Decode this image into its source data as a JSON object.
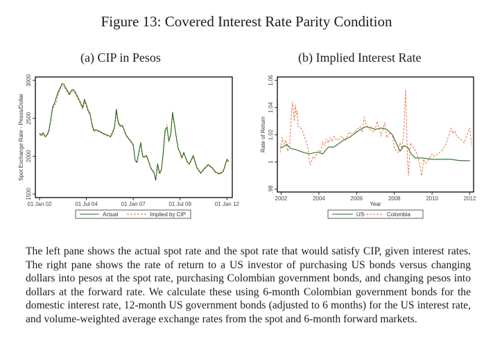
{
  "figure_title": "Figure 13: Covered Interest Rate Parity Condition",
  "caption": "The left pane shows the actual spot rate and the spot rate that would satisfy CIP, given interest rates. The right pane shows the rate of return to a US investor of purchasing US bonds versus changing dollars into pesos at the spot rate, purchasing Colombian government bonds, and changing pesos into dollars at the forward rate. We calculate these using 6-month Colombian government bonds for the domestic interest rate, 12-month US government bonds (adjusted to 6 months) for the US interest rate, and volume-weighted average exchange rates from the spot and 6-month forward markets.",
  "colors": {
    "series_a": "#1e6b1e",
    "series_b": "#e8622a",
    "frame": "#000000"
  },
  "chart_data": [
    {
      "type": "line",
      "title": "(a) CIP in Pesos",
      "xlabel": "",
      "ylabel": "Spot Exchange Rate - Pesos/Dollar",
      "xlim": [
        2002.0,
        2012.1
      ],
      "ylim": [
        1500,
        3000
      ],
      "yticks": [
        1500,
        2000,
        2500,
        3000
      ],
      "ytick_labels": [
        "1500",
        "2000",
        "2500",
        "3000"
      ],
      "xticks": [
        2002.0,
        2004.5,
        2007.0,
        2009.5,
        2012.0
      ],
      "xtick_labels": [
        "01 Jan 02",
        "01 Jul 04",
        "01 Jan 07",
        "01 Jul 09",
        "01 Jan 12"
      ],
      "grid": false,
      "legend": "bottom",
      "x": [
        2002.0,
        2002.1,
        2002.2,
        2002.3,
        2002.4,
        2002.5,
        2002.6,
        2002.7,
        2002.8,
        2002.9,
        2003.0,
        2003.1,
        2003.2,
        2003.3,
        2003.4,
        2003.5,
        2003.6,
        2003.7,
        2003.8,
        2003.9,
        2004.0,
        2004.1,
        2004.2,
        2004.3,
        2004.4,
        2004.5,
        2004.6,
        2004.7,
        2004.8,
        2004.9,
        2005.0,
        2005.2,
        2005.4,
        2005.6,
        2005.8,
        2006.0,
        2006.1,
        2006.2,
        2006.3,
        2006.4,
        2006.5,
        2006.6,
        2006.7,
        2006.8,
        2006.9,
        2007.0,
        2007.1,
        2007.2,
        2007.3,
        2007.4,
        2007.5,
        2007.6,
        2007.7,
        2007.8,
        2007.9,
        2008.0,
        2008.1,
        2008.2,
        2008.3,
        2008.4,
        2008.5,
        2008.6,
        2008.7,
        2008.8,
        2008.9,
        2009.0,
        2009.1,
        2009.2,
        2009.3,
        2009.4,
        2009.5,
        2009.6,
        2009.7,
        2009.8,
        2009.9,
        2010.0,
        2010.2,
        2010.4,
        2010.6,
        2010.8,
        2011.0,
        2011.2,
        2011.4,
        2011.6,
        2011.8,
        2012.0,
        2012.1
      ],
      "series": [
        {
          "name": "Actual",
          "values": [
            2300,
            2280,
            2310,
            2260,
            2280,
            2340,
            2480,
            2650,
            2700,
            2780,
            2850,
            2900,
            2960,
            2950,
            2900,
            2860,
            2820,
            2870,
            2880,
            2850,
            2800,
            2750,
            2700,
            2640,
            2750,
            2680,
            2600,
            2560,
            2420,
            2340,
            2350,
            2330,
            2300,
            2280,
            2260,
            2380,
            2620,
            2450,
            2400,
            2410,
            2360,
            2290,
            2250,
            2220,
            2190,
            2150,
            1950,
            1920,
            2060,
            2180,
            2000,
            1990,
            2010,
            1950,
            1870,
            1820,
            1790,
            1680,
            1900,
            1780,
            1820,
            2050,
            2350,
            2380,
            2200,
            2290,
            2580,
            2420,
            2250,
            2100,
            2050,
            1980,
            2050,
            1980,
            1920,
            1900,
            2010,
            1850,
            1780,
            1840,
            1890,
            1850,
            1790,
            1770,
            1800,
            1960,
            1930,
            1870
          ]
        },
        {
          "name": "Implied by CIP",
          "values": [
            2290,
            2260,
            2300,
            2250,
            2270,
            2320,
            2460,
            2620,
            2680,
            2700,
            2820,
            2880,
            2930,
            2920,
            2880,
            2840,
            2800,
            2850,
            2860,
            2830,
            2780,
            2730,
            2680,
            2620,
            2720,
            2660,
            2580,
            2540,
            2400,
            2320,
            2340,
            2320,
            2290,
            2270,
            2250,
            2360,
            2580,
            2420,
            2390,
            2400,
            2350,
            2280,
            2240,
            2210,
            2180,
            2140,
            1940,
            1910,
            2040,
            2160,
            1990,
            1980,
            2000,
            1940,
            1860,
            1810,
            1780,
            1700,
            1870,
            1760,
            1800,
            2020,
            2300,
            2420,
            2190,
            2270,
            2540,
            2400,
            2240,
            2090,
            2040,
            1970,
            2040,
            1970,
            1910,
            1890,
            1990,
            1840,
            1770,
            1830,
            1880,
            1840,
            1780,
            1760,
            1790,
            1940,
            1920,
            1860
          ]
        }
      ]
    },
    {
      "type": "line",
      "title": "(b) Implied Interest Rate",
      "xlabel": "Year",
      "ylabel": "Rate of Return",
      "xlim": [
        2001.8,
        2012.2
      ],
      "ylim": [
        0.98,
        1.06
      ],
      "yticks": [
        0.98,
        1.0,
        1.02,
        1.04,
        1.06
      ],
      "ytick_labels": [
        ".98",
        "1",
        "1.02",
        "1.04",
        "1.06"
      ],
      "xticks": [
        2002,
        2004,
        2006,
        2008,
        2010,
        2012
      ],
      "xtick_labels": [
        "2002",
        "2004",
        "2006",
        "2008",
        "2010",
        "2012"
      ],
      "grid": false,
      "legend": "bottom",
      "series": [
        {
          "name": "US",
          "x": [
            2001.95,
            2002.1,
            2002.3,
            2002.5,
            2002.8,
            2003.0,
            2003.2,
            2003.5,
            2003.8,
            2004.0,
            2004.2,
            2004.5,
            2004.8,
            2005.0,
            2005.3,
            2005.6,
            2005.9,
            2006.2,
            2006.5,
            2006.8,
            2007.0,
            2007.3,
            2007.6,
            2007.9,
            2008.1,
            2008.3,
            2008.5,
            2008.7,
            2008.9,
            2009.1,
            2009.5,
            2010.0,
            2010.5,
            2011.0,
            2011.5,
            2012.0
          ],
          "values": [
            1.011,
            1.011,
            1.013,
            1.01,
            1.009,
            1.008,
            1.007,
            1.006,
            1.007,
            1.007,
            1.006,
            1.011,
            1.011,
            1.013,
            1.016,
            1.018,
            1.021,
            1.024,
            1.026,
            1.025,
            1.024,
            1.025,
            1.024,
            1.02,
            1.014,
            1.008,
            1.012,
            1.011,
            1.006,
            1.003,
            1.003,
            1.002,
            1.002,
            1.002,
            1.001,
            1.001
          ]
        },
        {
          "name": "Colombia",
          "x": [
            2001.95,
            2002.05,
            2002.15,
            2002.25,
            2002.35,
            2002.45,
            2002.55,
            2002.6,
            2002.7,
            2002.75,
            2002.8,
            2002.85,
            2002.9,
            2003.0,
            2003.1,
            2003.2,
            2003.3,
            2003.4,
            2003.5,
            2003.55,
            2003.7,
            2003.8,
            2003.9,
            2004.0,
            2004.1,
            2004.2,
            2004.3,
            2004.4,
            2004.5,
            2004.6,
            2004.7,
            2004.8,
            2004.9,
            2005.0,
            2005.2,
            2005.4,
            2005.6,
            2005.8,
            2006.0,
            2006.2,
            2006.3,
            2006.4,
            2006.5,
            2006.7,
            2006.9,
            2007.0,
            2007.1,
            2007.3,
            2007.5,
            2007.6,
            2007.8,
            2007.9,
            2008.0,
            2008.2,
            2008.3,
            2008.4,
            2008.5,
            2008.6,
            2008.7,
            2008.75,
            2008.85,
            2008.95,
            2009.05,
            2009.2,
            2009.35,
            2009.45,
            2009.55,
            2009.65,
            2009.75,
            2009.9,
            2010.0,
            2010.1,
            2010.3,
            2010.5,
            2010.7,
            2010.9,
            2011.0,
            2011.1,
            2011.2,
            2011.3,
            2011.5,
            2011.7,
            2011.9,
            2012.0,
            2012.1
          ],
          "values": [
            1.007,
            1.018,
            1.013,
            1.016,
            1.008,
            1.012,
            1.036,
            1.044,
            1.03,
            1.042,
            1.035,
            1.038,
            1.026,
            1.026,
            1.024,
            1.02,
            1.016,
            1.012,
            1.0,
            0.998,
            1.004,
            1.003,
            1.006,
            1.009,
            1.007,
            1.015,
            1.012,
            1.017,
            1.014,
            1.018,
            1.015,
            1.019,
            1.017,
            1.016,
            1.019,
            1.016,
            1.022,
            1.02,
            1.024,
            1.026,
            1.022,
            1.033,
            1.028,
            1.024,
            1.022,
            1.025,
            1.03,
            1.019,
            1.029,
            1.018,
            1.022,
            1.02,
            1.01,
            1.007,
            1.014,
            1.01,
            1.022,
            1.053,
            1.0,
            0.99,
            1.014,
            1.012,
            1.01,
            1.006,
            0.998,
            0.99,
            1.002,
            0.999,
            1.0,
            1.004,
            1.006,
            1.004,
            1.006,
            1.008,
            1.012,
            1.02,
            1.025,
            1.021,
            1.023,
            1.019,
            1.017,
            1.014,
            1.022,
            1.025,
            1.012
          ]
        }
      ]
    }
  ]
}
